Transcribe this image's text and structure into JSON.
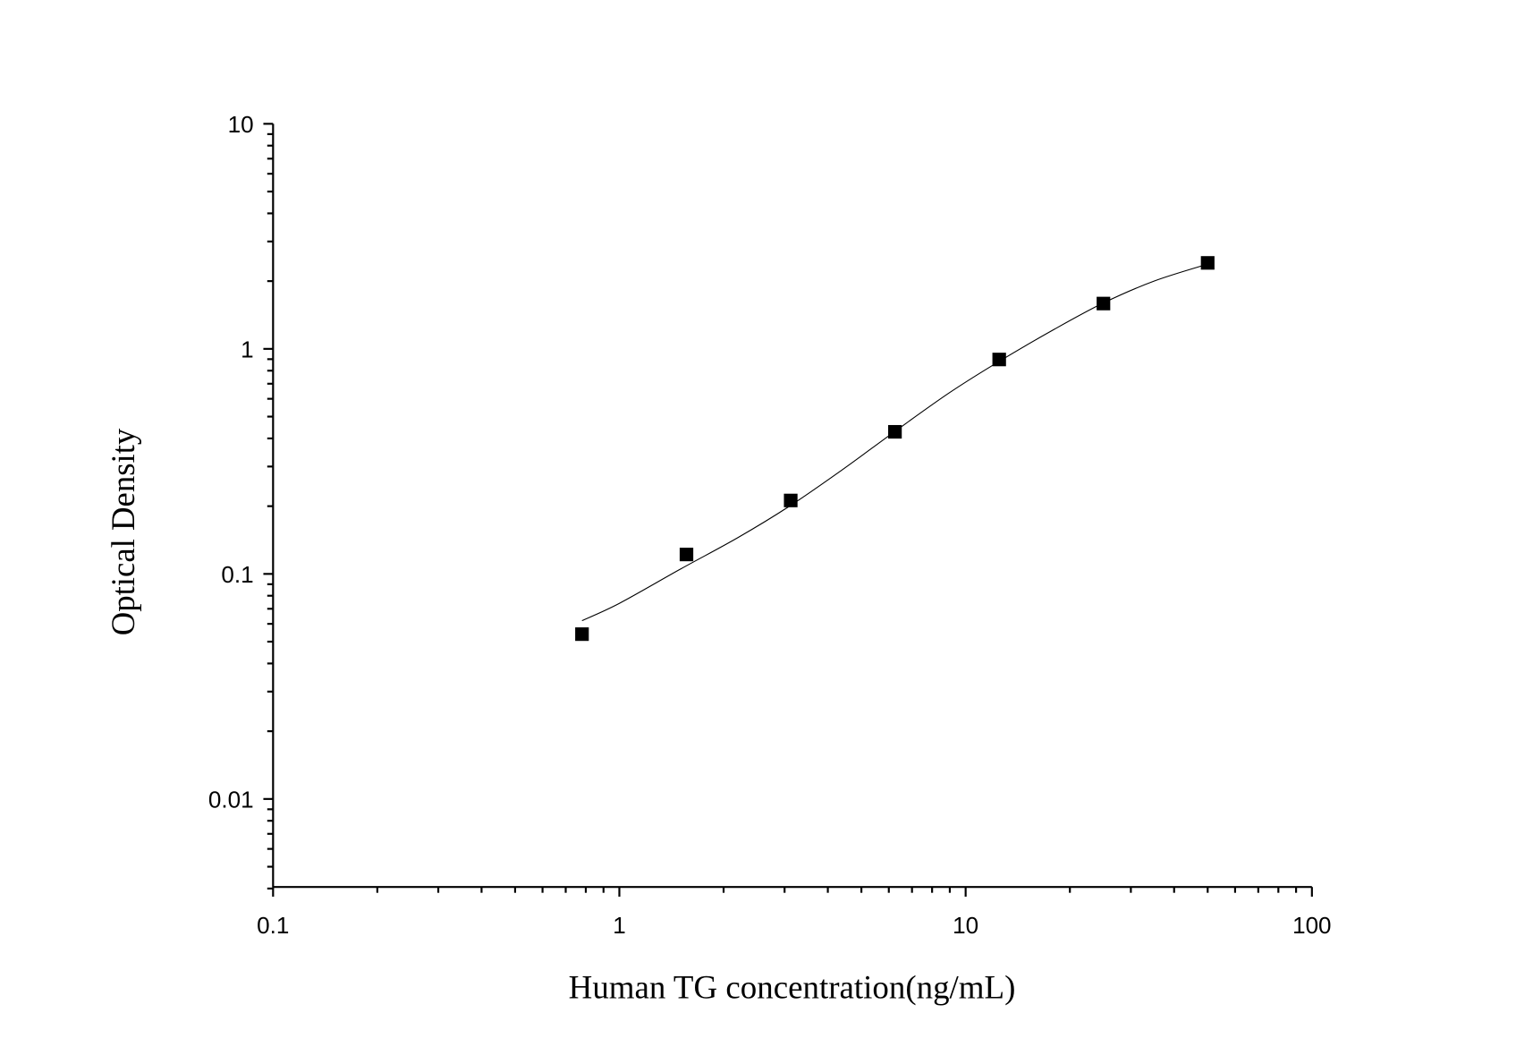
{
  "chart_data": {
    "type": "scatter",
    "title": "",
    "xlabel": "Human TG concentration(ng/mL)",
    "ylabel": "Optical Density",
    "x_scale": "log",
    "y_scale": "log",
    "xlim": [
      0.1,
      100
    ],
    "ylim": [
      0.004,
      10
    ],
    "x_ticks": [
      {
        "v": 0.1,
        "label": "0.1"
      },
      {
        "v": 1,
        "label": "1"
      },
      {
        "v": 10,
        "label": "10"
      },
      {
        "v": 100,
        "label": "100"
      }
    ],
    "y_ticks": [
      {
        "v": 0.01,
        "label": "0.01"
      },
      {
        "v": 0.1,
        "label": "0.1"
      },
      {
        "v": 1,
        "label": "1"
      },
      {
        "v": 10,
        "label": "10"
      }
    ],
    "grid": false,
    "legend": "none",
    "marker": "square",
    "color": "#000000",
    "points": [
      {
        "x": 0.78,
        "y": 0.054
      },
      {
        "x": 1.5625,
        "y": 0.122
      },
      {
        "x": 3.125,
        "y": 0.212
      },
      {
        "x": 6.25,
        "y": 0.428
      },
      {
        "x": 12.5,
        "y": 0.897
      },
      {
        "x": 25,
        "y": 1.59
      },
      {
        "x": 50,
        "y": 2.41
      }
    ],
    "fit_curve": [
      {
        "x": 0.78,
        "y": 0.062
      },
      {
        "x": 1.0,
        "y": 0.074
      },
      {
        "x": 1.5,
        "y": 0.105
      },
      {
        "x": 2.2,
        "y": 0.145
      },
      {
        "x": 3.1,
        "y": 0.2
      },
      {
        "x": 4.4,
        "y": 0.29
      },
      {
        "x": 6.25,
        "y": 0.43
      },
      {
        "x": 9,
        "y": 0.64
      },
      {
        "x": 12.5,
        "y": 0.88
      },
      {
        "x": 18,
        "y": 1.22
      },
      {
        "x": 25,
        "y": 1.6
      },
      {
        "x": 35,
        "y": 2.0
      },
      {
        "x": 50,
        "y": 2.38
      }
    ]
  }
}
